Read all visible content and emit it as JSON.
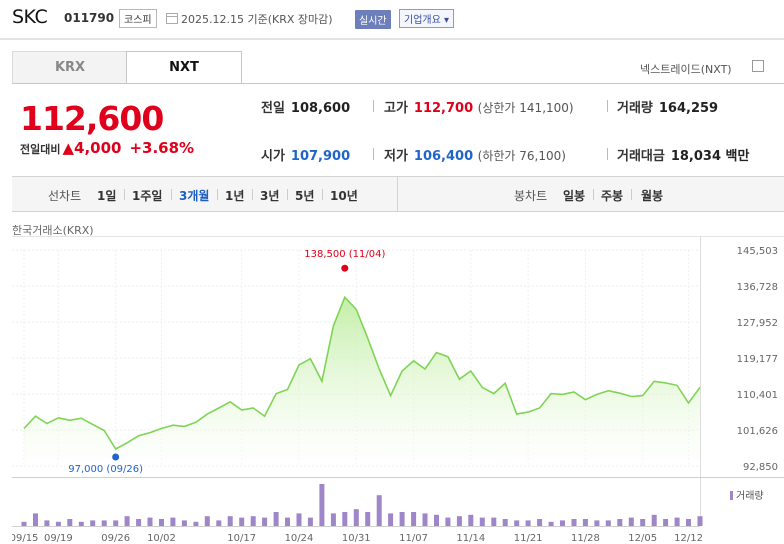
{
  "header": {
    "stock_name": "SKC",
    "stock_code": "011790",
    "market_badge": "코스피",
    "date_info": "2025.12.15 기준(KRX 장마감)",
    "live_badge": "실시간",
    "company_button": "기업개요 ▾"
  },
  "tabs": {
    "krx": "KRX",
    "nxt": "NXT"
  },
  "nxt_label": "넥스트레이드(NXT)",
  "quote": {
    "price": "112,600",
    "change_label": "전일대비",
    "change": "▲4,000",
    "change_pct": "+3.68%"
  },
  "stats": {
    "prev_close": {
      "label": "전일",
      "value": "108,600"
    },
    "high": {
      "label": "고가",
      "value": "112,700",
      "sub": "(상한가 141,100)"
    },
    "volume": {
      "label": "거래량",
      "value": "164,259"
    },
    "open": {
      "label": "시가",
      "value": "107,900"
    },
    "low": {
      "label": "저가",
      "value": "106,400",
      "sub": "(하한가 76,100)"
    },
    "amount": {
      "label": "거래대금",
      "value": "18,034 백만"
    }
  },
  "periods": {
    "line_label": "선차트",
    "line_items": [
      "1일",
      "1주일",
      "3개월",
      "1년",
      "3년",
      "5년",
      "10년"
    ],
    "selected": "3개월",
    "candle_label": "봉차트",
    "candle_items": [
      "일봉",
      "주봉",
      "월봉"
    ]
  },
  "source": "한국거래소(KRX)",
  "colors": {
    "up": "#e0001b",
    "down": "#1f65c9",
    "line": "#7fd456",
    "volume": "#9e86c9"
  },
  "chart_data": {
    "type": "area",
    "y_ticks": [
      "145,503",
      "136,728",
      "127,952",
      "119,177",
      "110,401",
      "101,626",
      "92,850"
    ],
    "ylim": [
      92850,
      145503
    ],
    "x_ticks": [
      "09/15",
      "09/19",
      "09/26",
      "10/02",
      "10/17",
      "10/24",
      "10/31",
      "11/07",
      "11/14",
      "11/21",
      "11/28",
      "12/05",
      "12/12"
    ],
    "max_label": "138,500 (11/04)",
    "min_label": "97,000 (09/26)",
    "volume_legend": "거래량",
    "prices": [
      102000,
      105000,
      103200,
      104600,
      104000,
      104500,
      103000,
      101500,
      97000,
      98500,
      100200,
      101000,
      102000,
      102800,
      102500,
      103500,
      105500,
      107000,
      108500,
      106500,
      107000,
      105000,
      110500,
      111500,
      117500,
      119000,
      113500,
      127000,
      134000,
      131000,
      124000,
      116500,
      110000,
      116000,
      118500,
      116500,
      120500,
      119500,
      114000,
      116000,
      112000,
      110500,
      113000,
      105500,
      106000,
      107000,
      110500,
      110300,
      110900,
      109000,
      110300,
      111200,
      110600,
      109800,
      110000,
      113500,
      113100,
      112500,
      108200,
      112000
    ],
    "volumes": [
      3,
      9,
      4,
      3,
      5,
      3,
      4,
      4,
      4,
      7,
      5,
      6,
      5,
      6,
      4,
      3,
      7,
      4,
      7,
      6,
      7,
      6,
      10,
      6,
      9,
      6,
      30,
      9,
      10,
      12,
      10,
      22,
      9,
      10,
      10,
      9,
      8,
      6,
      7,
      8,
      6,
      6,
      5,
      4,
      4,
      5,
      3,
      4,
      5,
      5,
      4,
      4,
      5,
      6,
      5,
      8,
      5,
      6,
      5,
      7
    ]
  }
}
